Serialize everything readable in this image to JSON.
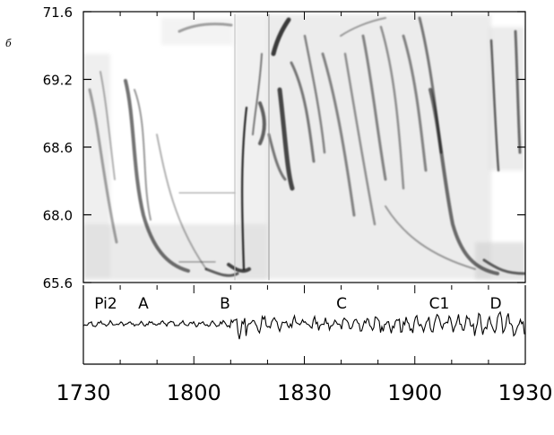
{
  "panel_label": "б",
  "chart_data": [
    {
      "type": "heatmap",
      "description_key": "latitude-time keogram",
      "x_range": [
        "17:30",
        "19:30"
      ],
      "ylim": [
        65.6,
        71.6
      ],
      "y_ticks": [
        "71.6",
        "69.2",
        "68.6",
        "68.0",
        "65.6"
      ],
      "grid": false,
      "colors": {
        "low": "#ffffff",
        "high": "#000000"
      }
    },
    {
      "type": "line",
      "x_ticks": [
        "1730",
        "1800",
        "1830",
        "1900",
        "1930"
      ],
      "annotations": [
        "Pi2",
        "A",
        "B",
        "C",
        "C1",
        "D"
      ],
      "grid": false,
      "line_color": "#000000"
    }
  ]
}
